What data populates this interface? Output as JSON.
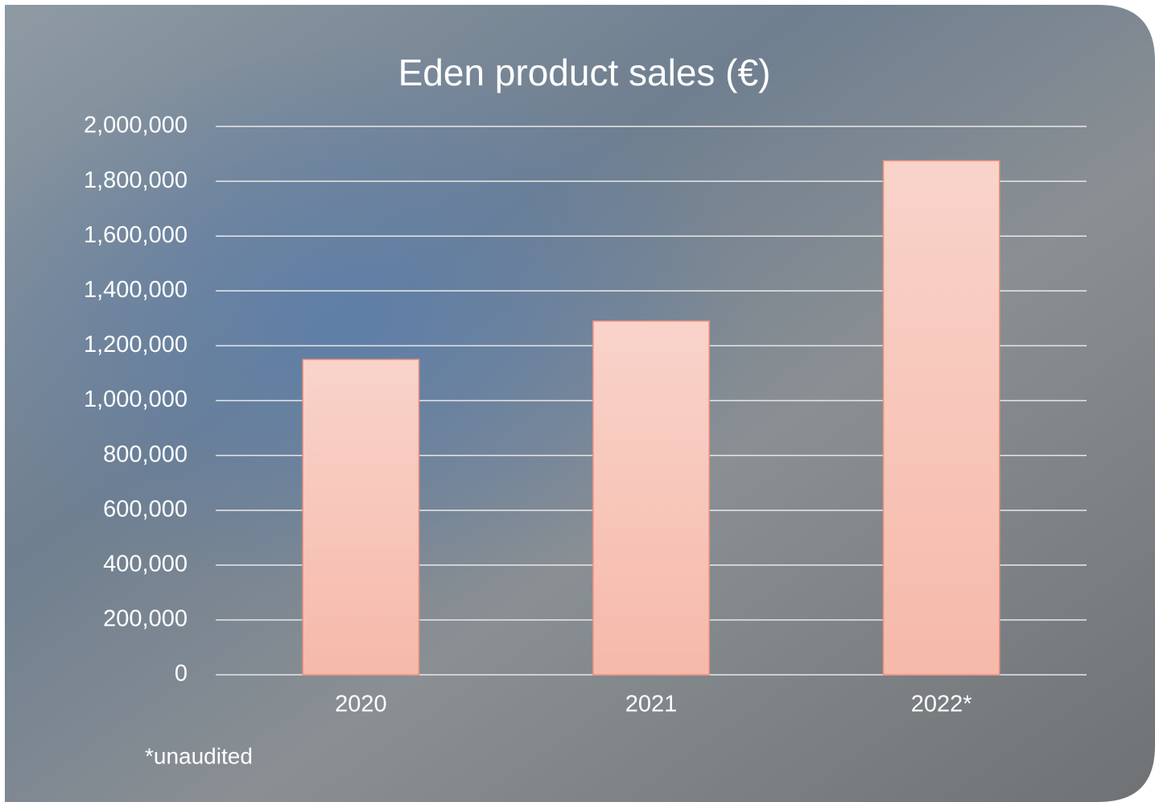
{
  "chart_data": {
    "type": "bar",
    "title": "Eden product sales (€)",
    "categories": [
      "2020",
      "2021",
      "2022*"
    ],
    "values": [
      1150000,
      1290000,
      1875000
    ],
    "color": "#f7c3b6",
    "ylim": [
      0,
      2000000
    ],
    "yticks": [
      0,
      {
        "value": 200000,
        "label": "200,000"
      },
      {
        "value": 400000,
        "label": "400,000"
      },
      {
        "value": 600000,
        "label": "600,000"
      },
      {
        "value": 800000,
        "label": "800,000"
      },
      {
        "value": 1000000,
        "label": "1,000,000"
      },
      {
        "value": 1200000,
        "label": "1,200,000"
      },
      {
        "value": 1400000,
        "label": "1,400,000"
      },
      {
        "value": 1600000,
        "label": "1,600,000"
      },
      {
        "value": 1800000,
        "label": "1,800,000"
      },
      {
        "value": 2000000,
        "label": "2,000,000"
      }
    ],
    "grid": true,
    "annotation": "*unaudited"
  }
}
